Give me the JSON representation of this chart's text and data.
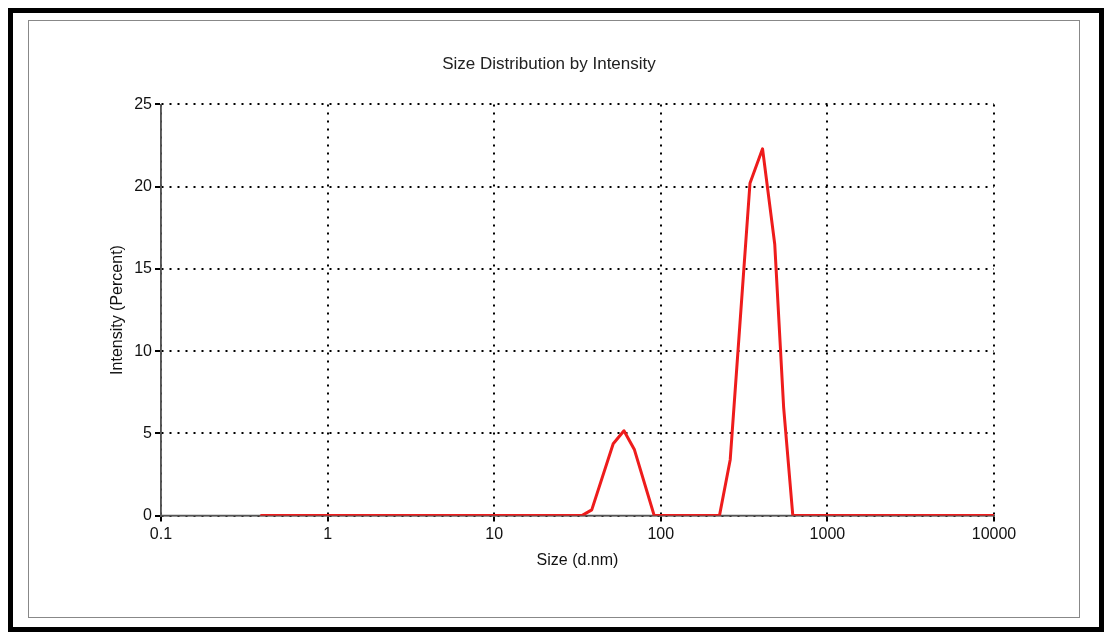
{
  "chart_data": {
    "type": "line",
    "title": "Size Distribution by Intensity",
    "xlabel": "Size (d.nm)",
    "ylabel": "Intensity (Percent)",
    "log": "x",
    "x": [
      0.4,
      33.6,
      38.5,
      51.8,
      60.1,
      69.5,
      91.3,
      225,
      261,
      343,
      408,
      483,
      546,
      620,
      10000
    ],
    "series": [
      {
        "color": "#ee1c1c",
        "values": [
          0,
          0,
          0.35,
          4.37,
          5.16,
          4.0,
          0,
          0,
          3.4,
          20.2,
          22.3,
          16.5,
          6.6,
          0,
          0
        ]
      }
    ],
    "xlim": [
      0.1,
      10000
    ],
    "xticks": [
      0.1,
      1,
      10,
      100,
      1000,
      10000
    ],
    "ylim": [
      0,
      25
    ],
    "yticks": [
      0,
      5,
      10,
      15,
      20,
      25
    ],
    "grid": true,
    "legend": false,
    "marker": "none",
    "line_style": "solid"
  }
}
